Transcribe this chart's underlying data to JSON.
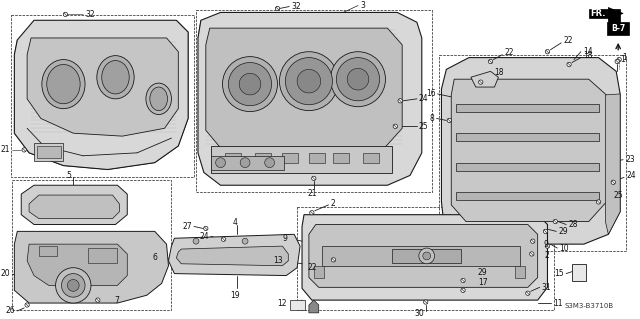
{
  "bg_color": "#f5f5f0",
  "line_color": "#1a1a1a",
  "text_color": "#111111",
  "fig_width": 6.4,
  "fig_height": 3.19,
  "dpi": 100,
  "diagram_code": "S3M3-B3710B",
  "page_ref": "B-7"
}
